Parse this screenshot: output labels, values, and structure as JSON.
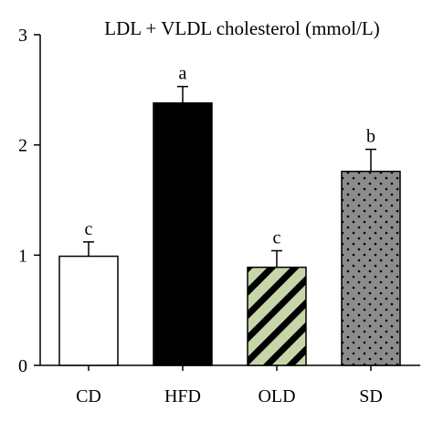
{
  "chart_data": {
    "type": "bar",
    "title": "LDL + VLDL cholesterol (mmol/L)",
    "xlabel": "",
    "ylabel": "",
    "categories": [
      "CD",
      "HFD",
      "OLD",
      "SD"
    ],
    "values": [
      0.99,
      2.38,
      0.89,
      1.76
    ],
    "errors": [
      0.13,
      0.15,
      0.15,
      0.2
    ],
    "significance": [
      "c",
      "a",
      "c",
      "b"
    ],
    "ylim": [
      0,
      3
    ],
    "yticks": [
      "0",
      "1",
      "2",
      "3"
    ],
    "fills": [
      "white",
      "black",
      "green-hatch",
      "gray-dots"
    ],
    "colors": {
      "black": "#000000",
      "white": "#ffffff",
      "green": "#c7d6a8",
      "gray": "#8c8c8c"
    }
  }
}
